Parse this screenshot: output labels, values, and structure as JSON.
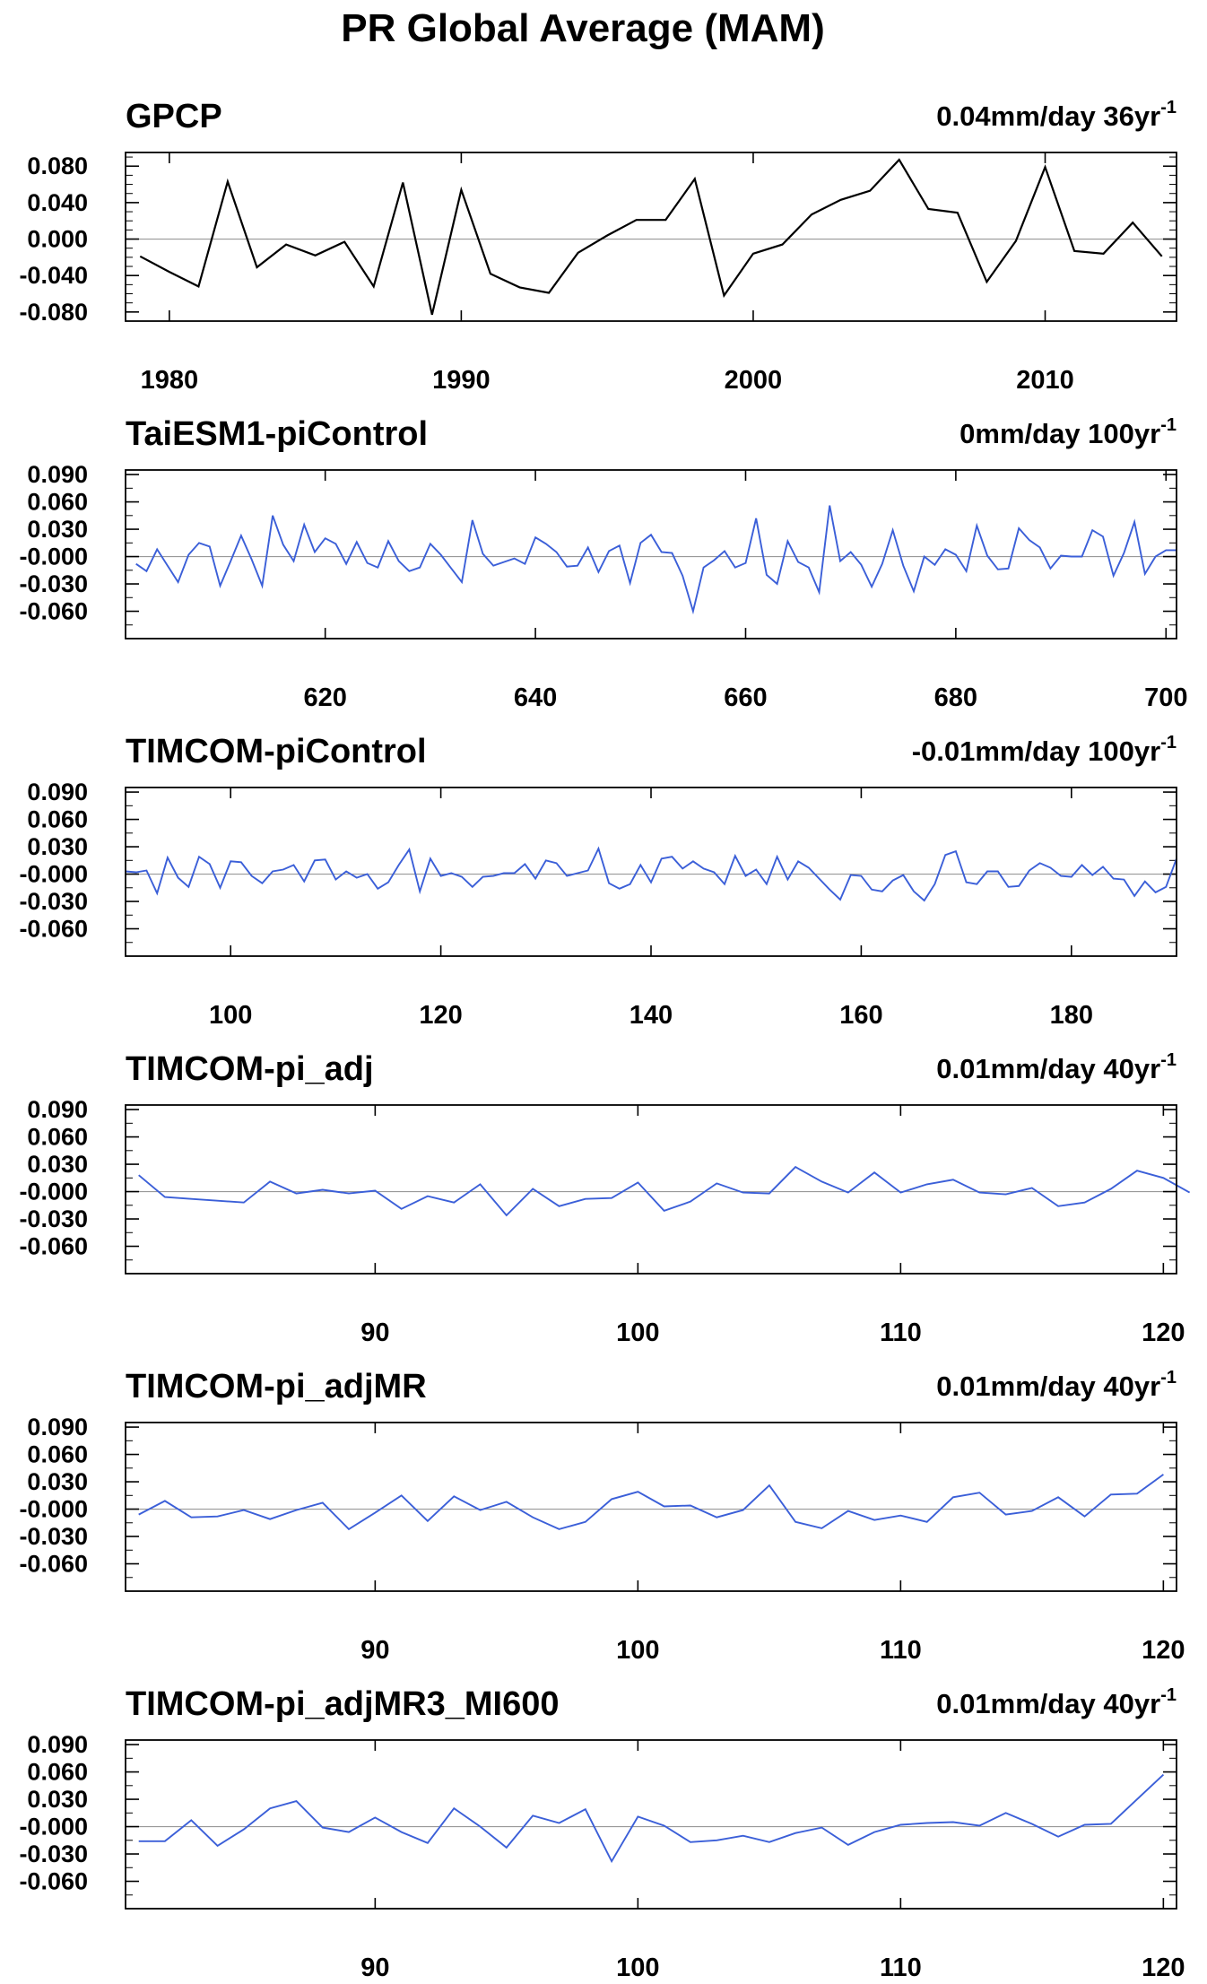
{
  "figure": {
    "title": "PR Global Average (MAM)"
  },
  "chart_data": [
    {
      "type": "line",
      "title": "GPCP",
      "trend": {
        "value": "0.04mm/day 36yr",
        "exp": "-1"
      },
      "line_color": "#000000",
      "xlim": [
        1978.5,
        2014.5
      ],
      "ylim": [
        -0.09,
        0.095
      ],
      "x_ticks": [
        1980,
        1990,
        2000,
        2010
      ],
      "x_tick_labels": [
        "1980",
        "1990",
        "2000",
        "2010"
      ],
      "y_ticks": [
        0.08,
        0.04,
        0.0,
        -0.04,
        -0.08
      ],
      "y_tick_labels": [
        "0.080",
        "0.040",
        "0.000",
        "-0.040",
        "-0.080"
      ],
      "y_minor": 0.01,
      "x": [
        1979,
        1980,
        1981,
        1982,
        1983,
        1984,
        1985,
        1986,
        1987,
        1988,
        1989,
        1990,
        1991,
        1992,
        1993,
        1994,
        1995,
        1996,
        1997,
        1998,
        1999,
        2000,
        2001,
        2002,
        2003,
        2004,
        2005,
        2006,
        2007,
        2008,
        2009,
        2010,
        2011,
        2012,
        2013,
        2014
      ],
      "values": [
        -0.019,
        -0.036,
        -0.052,
        0.063,
        -0.031,
        -0.006,
        -0.018,
        -0.003,
        -0.052,
        0.062,
        -0.083,
        0.054,
        -0.038,
        -0.053,
        -0.059,
        -0.015,
        0.004,
        0.021,
        0.021,
        0.066,
        -0.062,
        -0.016,
        -0.006,
        0.027,
        0.043,
        0.053,
        0.087,
        0.033,
        0.029,
        -0.047,
        -0.002,
        0.079,
        -0.013,
        -0.016,
        0.018,
        -0.019
      ]
    },
    {
      "type": "line",
      "title": "TaiESM1-piControl",
      "trend": {
        "value": "0mm/day 100yr",
        "exp": "-1"
      },
      "line_color": "#3b5fd8",
      "xlim": [
        601,
        701
      ],
      "ylim": [
        -0.09,
        0.095
      ],
      "x_ticks": [
        620,
        640,
        660,
        680,
        700
      ],
      "x_tick_labels": [
        "620",
        "640",
        "660",
        "680",
        "700"
      ],
      "y_ticks": [
        0.09,
        0.06,
        0.03,
        0.0,
        -0.03,
        -0.06
      ],
      "y_tick_labels": [
        "0.090",
        "0.060",
        "0.030",
        "-0.000",
        "-0.030",
        "-0.060"
      ],
      "y_minor": 0.015,
      "x_start": 602,
      "values": [
        -0.008,
        -0.016,
        0.008,
        -0.01,
        -0.028,
        0.002,
        0.015,
        0.011,
        -0.032,
        -0.005,
        0.023,
        -0.003,
        -0.032,
        0.045,
        0.013,
        -0.005,
        0.035,
        0.005,
        0.02,
        0.014,
        -0.008,
        0.016,
        -0.007,
        -0.012,
        0.017,
        -0.005,
        -0.016,
        -0.012,
        0.014,
        0.002,
        -0.013,
        -0.028,
        0.04,
        0.003,
        -0.01,
        -0.006,
        -0.002,
        -0.008,
        0.021,
        0.014,
        0.005,
        -0.011,
        -0.01,
        0.01,
        -0.017,
        0.006,
        0.012,
        -0.029,
        0.015,
        0.024,
        0.005,
        0.004,
        -0.021,
        -0.06,
        -0.012,
        -0.004,
        0.006,
        -0.012,
        -0.007,
        0.042,
        -0.02,
        -0.03,
        0.017,
        -0.006,
        -0.012,
        -0.039,
        0.056,
        -0.005,
        0.005,
        -0.009,
        -0.033,
        -0.008,
        0.029,
        -0.01,
        -0.038,
        0.0,
        -0.009,
        0.008,
        0.002,
        -0.016,
        0.034,
        0.001,
        -0.014,
        -0.013,
        0.031,
        0.018,
        0.01,
        -0.013,
        0.001,
        0.0,
        0.0,
        0.029,
        0.022,
        -0.021,
        0.004,
        0.038,
        -0.019,
        0.0,
        0.007,
        0.007
      ]
    },
    {
      "type": "line",
      "title": "TIMCOM-piControl",
      "trend": {
        "value": "-0.01mm/day 100yr",
        "exp": "-1"
      },
      "line_color": "#3b5fd8",
      "xlim": [
        90,
        190
      ],
      "ylim": [
        -0.09,
        0.095
      ],
      "x_ticks": [
        100,
        120,
        140,
        160,
        180
      ],
      "x_tick_labels": [
        "100",
        "120",
        "140",
        "160",
        "180"
      ],
      "y_ticks": [
        0.09,
        0.06,
        0.03,
        0.0,
        -0.03,
        -0.06
      ],
      "y_tick_labels": [
        "0.090",
        "0.060",
        "0.030",
        "-0.000",
        "-0.030",
        "-0.060"
      ],
      "y_minor": 0.015,
      "x_start": 90,
      "values": [
        0.003,
        0.002,
        0.004,
        -0.021,
        0.018,
        -0.004,
        -0.014,
        0.019,
        0.011,
        -0.015,
        0.014,
        0.013,
        -0.002,
        -0.01,
        0.003,
        0.005,
        0.01,
        -0.008,
        0.015,
        0.016,
        -0.006,
        0.003,
        -0.004,
        0.0,
        -0.016,
        -0.009,
        0.01,
        0.027,
        -0.019,
        0.017,
        -0.002,
        0.001,
        -0.003,
        -0.014,
        -0.003,
        -0.002,
        0.001,
        0.001,
        0.011,
        -0.005,
        0.015,
        0.012,
        -0.002,
        0.001,
        0.004,
        0.028,
        -0.01,
        -0.016,
        -0.011,
        0.01,
        -0.009,
        0.017,
        0.019,
        0.006,
        0.014,
        0.006,
        0.002,
        -0.011,
        0.02,
        -0.002,
        0.005,
        -0.011,
        0.019,
        -0.006,
        0.014,
        0.007,
        -0.005,
        -0.017,
        -0.028,
        -0.001,
        -0.002,
        -0.017,
        -0.019,
        -0.007,
        -0.001,
        -0.019,
        -0.029,
        -0.011,
        0.021,
        0.025,
        -0.009,
        -0.011,
        0.003,
        0.003,
        -0.014,
        -0.013,
        0.004,
        0.012,
        0.007,
        -0.002,
        -0.003,
        0.01,
        -0.001,
        0.008,
        -0.005,
        -0.006,
        -0.024,
        -0.008,
        -0.02,
        -0.014,
        0.017
      ]
    },
    {
      "type": "line",
      "title": "TIMCOM-pi_adj",
      "trend": {
        "value": "0.01mm/day 40yr",
        "exp": "-1"
      },
      "line_color": "#3b5fd8",
      "xlim": [
        80.5,
        120.5
      ],
      "ylim": [
        -0.09,
        0.095
      ],
      "x_ticks": [
        90,
        100,
        110,
        120
      ],
      "x_tick_labels": [
        "90",
        "100",
        "110",
        "120"
      ],
      "y_ticks": [
        0.09,
        0.06,
        0.03,
        0.0,
        -0.03,
        -0.06
      ],
      "y_tick_labels": [
        "0.090",
        "0.060",
        "0.030",
        "-0.000",
        "-0.030",
        "-0.060"
      ],
      "y_minor": 0.015,
      "x_start": 81,
      "values": [
        0.018,
        -0.006,
        -0.008,
        -0.01,
        -0.012,
        0.011,
        -0.002,
        0.002,
        -0.002,
        0.001,
        -0.019,
        -0.005,
        -0.012,
        0.008,
        -0.026,
        0.003,
        -0.016,
        -0.008,
        -0.007,
        0.01,
        -0.021,
        -0.011,
        0.009,
        -0.001,
        -0.002,
        0.027,
        0.011,
        -0.001,
        0.021,
        -0.001,
        0.008,
        0.013,
        -0.001,
        -0.003,
        0.004,
        -0.016,
        -0.012,
        0.003,
        0.023,
        0.015,
        -0.001
      ]
    },
    {
      "type": "line",
      "title": "TIMCOM-pi_adjMR",
      "trend": {
        "value": "0.01mm/day 40yr",
        "exp": "-1"
      },
      "line_color": "#3b5fd8",
      "xlim": [
        80.5,
        120.5
      ],
      "ylim": [
        -0.09,
        0.095
      ],
      "x_ticks": [
        90,
        100,
        110,
        120
      ],
      "x_tick_labels": [
        "90",
        "100",
        "110",
        "120"
      ],
      "y_ticks": [
        0.09,
        0.06,
        0.03,
        0.0,
        -0.03,
        -0.06
      ],
      "y_tick_labels": [
        "0.090",
        "0.060",
        "0.030",
        "-0.000",
        "-0.030",
        "-0.060"
      ],
      "y_minor": 0.015,
      "x_start": 81,
      "values": [
        -0.006,
        0.009,
        -0.009,
        -0.008,
        -0.001,
        -0.011,
        -0.001,
        0.007,
        -0.022,
        -0.004,
        0.015,
        -0.013,
        0.014,
        -0.001,
        0.008,
        -0.009,
        -0.022,
        -0.014,
        0.011,
        0.019,
        0.003,
        0.004,
        -0.009,
        -0.001,
        0.026,
        -0.014,
        -0.021,
        -0.002,
        -0.012,
        -0.007,
        -0.014,
        0.013,
        0.018,
        -0.006,
        -0.002,
        0.013,
        -0.008,
        0.016,
        0.017,
        0.038
      ]
    },
    {
      "type": "line",
      "title": "TIMCOM-pi_adjMR3_MI600",
      "trend": {
        "value": "0.01mm/day 40yr",
        "exp": "-1"
      },
      "line_color": "#3b5fd8",
      "xlim": [
        80.5,
        120.5
      ],
      "ylim": [
        -0.09,
        0.095
      ],
      "x_ticks": [
        90,
        100,
        110,
        120
      ],
      "x_tick_labels": [
        "90",
        "100",
        "110",
        "120"
      ],
      "y_ticks": [
        0.09,
        0.06,
        0.03,
        0.0,
        -0.03,
        -0.06
      ],
      "y_tick_labels": [
        "0.090",
        "0.060",
        "0.030",
        "-0.000",
        "-0.030",
        "-0.060"
      ],
      "y_minor": 0.015,
      "x_start": 81,
      "values": [
        -0.016,
        -0.016,
        0.007,
        -0.021,
        -0.003,
        0.02,
        0.028,
        -0.001,
        -0.006,
        0.01,
        -0.006,
        -0.018,
        0.02,
        0.0,
        -0.023,
        0.012,
        0.004,
        0.019,
        -0.038,
        0.011,
        0.001,
        -0.017,
        -0.015,
        -0.01,
        -0.017,
        -0.007,
        -0.001,
        -0.02,
        -0.006,
        0.002,
        0.004,
        0.005,
        0.001,
        0.015,
        0.003,
        -0.011,
        0.002,
        0.003,
        0.03,
        0.057
      ]
    }
  ]
}
